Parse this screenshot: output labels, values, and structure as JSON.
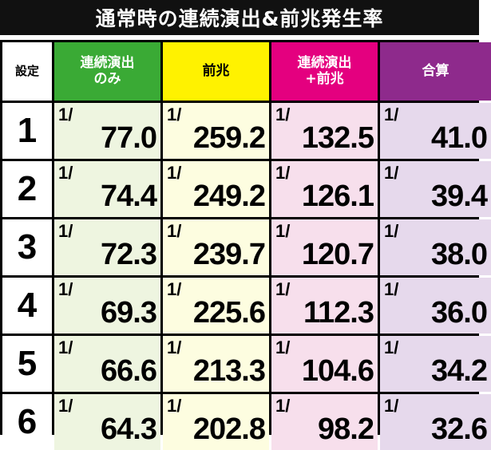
{
  "title": "通常時の連続演出&前兆発生率",
  "table": {
    "header": [
      "設定",
      "連続演出\nのみ",
      "前兆",
      "連続演出\n+前兆",
      "合算"
    ],
    "fraction_prefix": "1/",
    "rows": [
      [
        "1",
        "77.0",
        "259.2",
        "132.5",
        "41.0"
      ],
      [
        "2",
        "74.4",
        "249.2",
        "126.1",
        "39.4"
      ],
      [
        "3",
        "72.3",
        "239.7",
        "120.7",
        "38.0"
      ],
      [
        "4",
        "69.3",
        "225.6",
        "112.3",
        "36.0"
      ],
      [
        "5",
        "66.6",
        "213.3",
        "104.6",
        "34.2"
      ],
      [
        "6",
        "64.3",
        "202.8",
        "98.2",
        "32.6"
      ]
    ]
  }
}
